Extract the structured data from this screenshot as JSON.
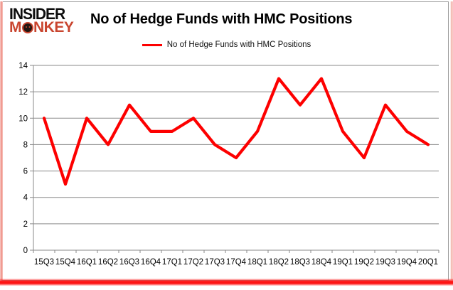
{
  "logo": {
    "line1": "INSIDER",
    "monkey_pre": "M",
    "monkey_post": "NKEY"
  },
  "header": {
    "title": "No of Hedge Funds with HMC Positions"
  },
  "legend": {
    "label": "No of Hedge Funds with HMC Positions"
  },
  "colors": {
    "series_red": "#fd0000",
    "logo_red": "#c9452f",
    "grid_gray": "#8a8a8a",
    "text_black": "#000000"
  },
  "chart_data": {
    "type": "line",
    "title": "No of Hedge Funds with HMC Positions",
    "categories": [
      "15Q3",
      "15Q4",
      "16Q1",
      "16Q2",
      "16Q3",
      "16Q4",
      "17Q1",
      "17Q2",
      "17Q3",
      "17Q4",
      "18Q1",
      "18Q2",
      "18Q3",
      "18Q4",
      "19Q1",
      "19Q2",
      "19Q3",
      "19Q4",
      "20Q1"
    ],
    "series": [
      {
        "name": "No of Hedge Funds with HMC Positions",
        "color": "#fd0000",
        "values": [
          10,
          5,
          10,
          8,
          11,
          9,
          9,
          10,
          8,
          7,
          9,
          13,
          11,
          13,
          9,
          7,
          11,
          9,
          8
        ]
      }
    ],
    "xlabel": "",
    "ylabel": "",
    "ylim": [
      0,
      14
    ],
    "yticks": [
      0,
      2,
      4,
      6,
      8,
      10,
      12,
      14
    ],
    "grid": true,
    "legend_position": "top"
  }
}
